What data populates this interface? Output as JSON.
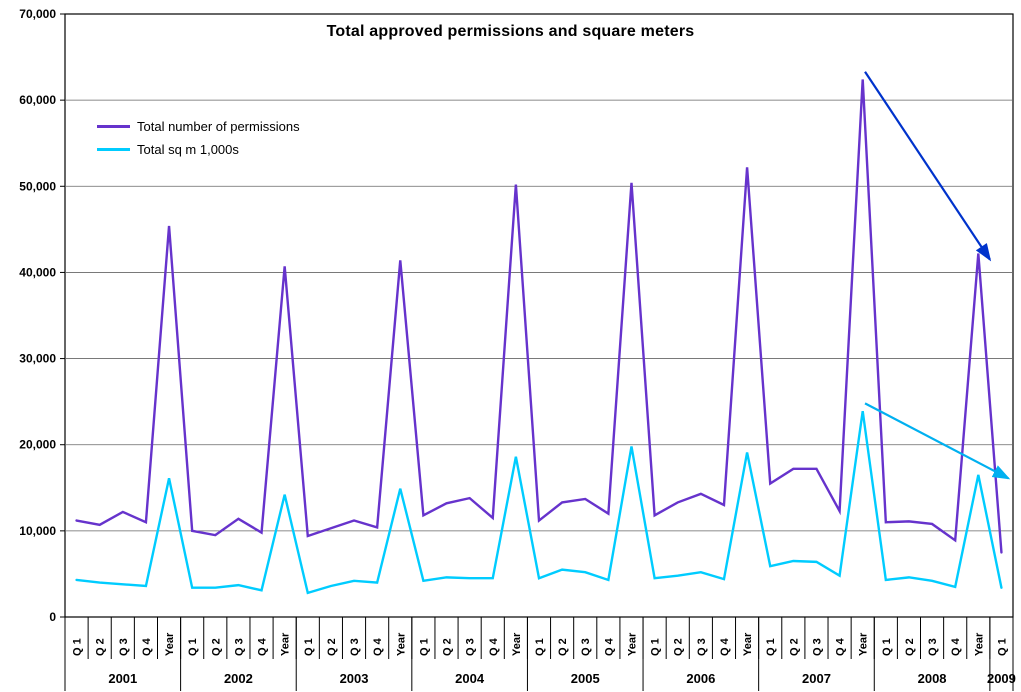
{
  "chart_data": {
    "type": "line",
    "title": "Total approved permissions and square meters",
    "ylim": [
      0,
      70000
    ],
    "ytick_step": 10000,
    "grid": true,
    "legend_position": "inside-top-left",
    "axis_color": "#000000",
    "gridline_color": "#666666",
    "year_groups": [
      {
        "year": "2001",
        "count": 5
      },
      {
        "year": "2002",
        "count": 5
      },
      {
        "year": "2003",
        "count": 5
      },
      {
        "year": "2004",
        "count": 5
      },
      {
        "year": "2005",
        "count": 5
      },
      {
        "year": "2006",
        "count": 5
      },
      {
        "year": "2007",
        "count": 5
      },
      {
        "year": "2008",
        "count": 5
      },
      {
        "year": "2009",
        "count": 1
      }
    ],
    "categories": [
      "Q 1",
      "Q 2",
      "Q 3",
      "Q 4",
      "Year",
      "Q 1",
      "Q 2",
      "Q 3",
      "Q 4",
      "Year",
      "Q 1",
      "Q 2",
      "Q 3",
      "Q 4",
      "Year",
      "Q 1",
      "Q 2",
      "Q 3",
      "Q 4",
      "Year",
      "Q 1",
      "Q 2",
      "Q 3",
      "Q 4",
      "Year",
      "Q 1",
      "Q 2",
      "Q 3",
      "Q 4",
      "Year",
      "Q 1",
      "Q 2",
      "Q 3",
      "Q 4",
      "Year",
      "Q 1",
      "Q 2",
      "Q 3",
      "Q 4",
      "Year",
      "Q 1"
    ],
    "series": [
      {
        "name": "Total number of permissions",
        "color": "#6633CC",
        "values": [
          11200,
          10700,
          12200,
          11000,
          45400,
          10000,
          9500,
          11400,
          9800,
          40700,
          9400,
          10300,
          11200,
          10400,
          41400,
          11800,
          13200,
          13800,
          11500,
          50200,
          11200,
          13300,
          13700,
          12000,
          50400,
          11800,
          13300,
          14300,
          13000,
          52200,
          15500,
          17200,
          17200,
          12300,
          62400,
          11000,
          11100,
          10800,
          8900,
          42200,
          7500
        ]
      },
      {
        "name": "Total sq m 1,000s",
        "color": "#00CCFF",
        "values": [
          4300,
          4000,
          3800,
          3600,
          16100,
          3400,
          3400,
          3700,
          3100,
          14200,
          2800,
          3600,
          4200,
          4000,
          14900,
          4200,
          4600,
          4500,
          4500,
          18600,
          4500,
          5500,
          5200,
          4300,
          19800,
          4500,
          4800,
          5200,
          4400,
          19100,
          5900,
          6500,
          6400,
          4800,
          23900,
          4300,
          4600,
          4200,
          3500,
          16500,
          3400
        ]
      }
    ],
    "annotations": [
      {
        "type": "arrow",
        "name": "permissions-trend-arrow",
        "color": "#0033CC",
        "from": {
          "i": 34.1,
          "v": 63300
        },
        "to": {
          "i": 39.5,
          "v": 41500
        }
      },
      {
        "type": "arrow",
        "name": "sqm-trend-arrow",
        "color": "#00B0F0",
        "from": {
          "i": 34.1,
          "v": 24800
        },
        "to": {
          "i": 40.3,
          "v": 16100
        }
      }
    ]
  }
}
